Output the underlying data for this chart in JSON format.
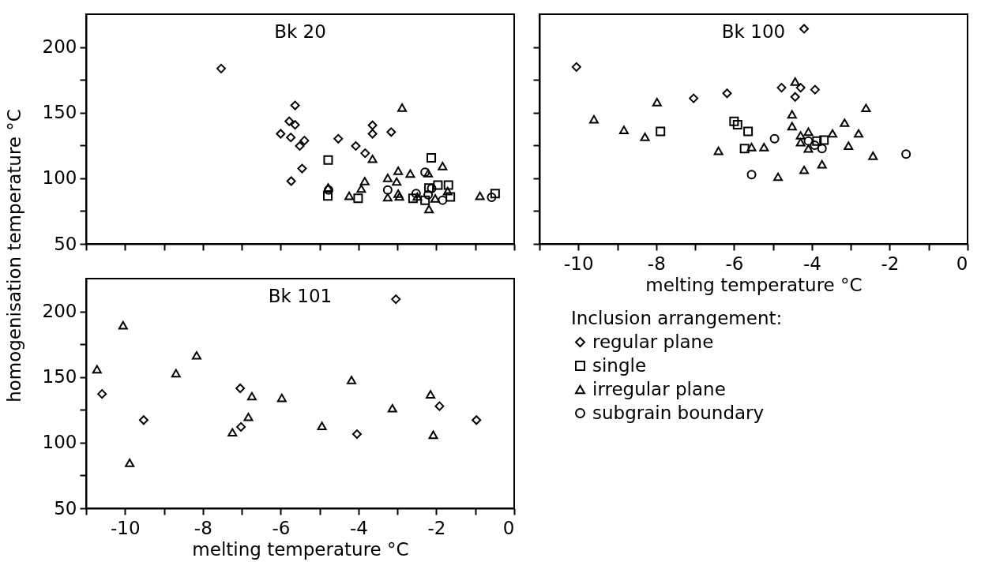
{
  "chart_data": [
    {
      "type": "scatter",
      "title": "Bk 20",
      "ylabel": "homogenisation temperature °C",
      "xlim": [
        -11,
        0
      ],
      "ylim": [
        50,
        225
      ],
      "xticks": [
        {
          "value": -11,
          "label": null
        },
        -10,
        {
          "value": -9,
          "label": null
        },
        -8,
        {
          "value": -7,
          "label": null
        },
        -6,
        {
          "value": -5,
          "label": null
        },
        -4,
        {
          "value": -3,
          "label": null
        },
        -2,
        {
          "value": -1,
          "label": null
        },
        0
      ],
      "yticks": [
        50,
        {
          "value": 75,
          "label": null
        },
        100,
        {
          "value": 125,
          "label": null
        },
        150,
        {
          "value": 175,
          "label": null
        },
        200
      ],
      "tick_labels": "y",
      "grid": false,
      "legend": false,
      "series": [
        {
          "color": "#000000",
          "marker": "diamond",
          "x": [
            -7.53,
            -5.63,
            -5.78,
            -5.63,
            -6.0,
            -5.74,
            -5.39,
            -5.51,
            -5.45,
            -5.73,
            -4.52,
            -4.07,
            -3.83,
            -3.64,
            -3.64,
            -3.16
          ],
          "values": [
            183.6,
            155.5,
            143.4,
            140.7,
            133.9,
            131.1,
            128.7,
            124.6,
            107.4,
            97.8,
            130.1,
            124.6,
            119.1,
            140.4,
            133.9,
            135.2
          ]
        },
        {
          "color": "#000000",
          "marker": "square",
          "x": [
            -4.78,
            -4.79,
            -4.01,
            -2.13,
            -1.96,
            -1.69,
            -1.64,
            -2.29,
            -0.49,
            -2.19,
            -2.6
          ],
          "values": [
            113.9,
            86.6,
            84.7,
            115.6,
            94.8,
            94.8,
            85.8,
            83.3,
            88.3,
            92.6,
            84.7
          ]
        },
        {
          "color": "#000000",
          "marker": "triangle",
          "x": [
            -2.88,
            -3.64,
            -2.67,
            -2.98,
            -3.25,
            -3.02,
            -3.84,
            -3.93,
            -4.24,
            -3.25,
            -2.95,
            -2.98,
            -2.21,
            -1.84,
            -1.71,
            -2.19,
            -0.88,
            -2.49,
            -2.03,
            -4.78
          ],
          "values": [
            153.8,
            114.8,
            103.6,
            105.7,
            100.3,
            97.5,
            97.8,
            92.1,
            86.6,
            85.5,
            86.1,
            88.3,
            103.8,
            109.3,
            90.2,
            76.5,
            86.6,
            86.1,
            84.7,
            92.9
          ]
        },
        {
          "color": "#000000",
          "marker": "circle",
          "x": [
            -4.77,
            -3.25,
            -2.29,
            -2.52,
            -2.12,
            -2.21,
            -1.84,
            -0.58
          ],
          "values": [
            91.0,
            91.0,
            104.6,
            88.3,
            92.3,
            87.4,
            83.3,
            85.5
          ]
        }
      ]
    },
    {
      "type": "scatter",
      "title": "Bk 100",
      "xlabel": "melting temperature °C",
      "legend_title": "Inclusion arrangement:",
      "xlim": [
        -11,
        0
      ],
      "ylim": [
        50,
        225
      ],
      "xticks": [
        {
          "value": -11,
          "label": null
        },
        -10,
        {
          "value": -9,
          "label": null
        },
        -8,
        {
          "value": -7,
          "label": null
        },
        -6,
        {
          "value": -5,
          "label": null
        },
        -4,
        {
          "value": -3,
          "label": null
        },
        -2,
        {
          "value": -1,
          "label": null
        },
        0
      ],
      "yticks": [
        50,
        {
          "value": 75,
          "label": null
        },
        100,
        {
          "value": 125,
          "label": null
        },
        150,
        {
          "value": 175,
          "label": null
        },
        200
      ],
      "tick_labels": "x",
      "grid": false,
      "legend": "bottom",
      "series": [
        {
          "name": "regular plane",
          "color": "#000000",
          "marker": "diamond",
          "x": [
            -4.2,
            -10.05,
            -7.04,
            -6.18,
            -4.78,
            -4.29,
            -3.92,
            -4.43
          ],
          "values": [
            213.9,
            184.8,
            160.9,
            164.7,
            169.0,
            169.0,
            167.5,
            162.0
          ]
        },
        {
          "name": "single",
          "color": "#000000",
          "marker": "square",
          "x": [
            -7.89,
            -6.0,
            -5.91,
            -5.64,
            -5.73,
            -3.69,
            -3.87
          ],
          "values": [
            135.7,
            143.4,
            140.8,
            135.7,
            122.6,
            129.1,
            128.4
          ]
        },
        {
          "name": "irregular plane",
          "color": "#000000",
          "marker": "triangle",
          "x": [
            -9.6,
            -7.98,
            -8.83,
            -8.29,
            -6.4,
            -5.55,
            -5.23,
            -4.87,
            -4.43,
            -4.51,
            -4.51,
            -4.29,
            -4.09,
            -4.29,
            -4.09,
            -3.47,
            -3.16,
            -2.8,
            -3.06,
            -2.61,
            -2.43,
            -4.2,
            -3.74
          ],
          "values": [
            144.9,
            158.0,
            136.8,
            131.6,
            120.9,
            123.7,
            123.7,
            101.1,
            173.7,
            148.7,
            139.7,
            132.7,
            135.5,
            127.4,
            122.6,
            134.2,
            142.3,
            134.2,
            124.8,
            153.6,
            117.1,
            106.4,
            110.7
          ]
        },
        {
          "name": "subgrain boundary",
          "color": "#000000",
          "marker": "circle",
          "x": [
            -4.96,
            -5.55,
            -3.93,
            -3.74,
            -4.09,
            -1.58
          ],
          "values": [
            130.1,
            102.8,
            125.2,
            122.6,
            128.4,
            118.4
          ]
        }
      ]
    },
    {
      "type": "scatter",
      "title": "Bk 101",
      "xlabel": "melting temperature °C",
      "xlim": [
        -11,
        0
      ],
      "ylim": [
        50,
        225
      ],
      "xticks": [
        {
          "value": -11,
          "label": null
        },
        -10,
        {
          "value": -9,
          "label": null
        },
        -8,
        {
          "value": -7,
          "label": null
        },
        -6,
        {
          "value": -5,
          "label": null
        },
        -4,
        {
          "value": -3,
          "label": null
        },
        -2,
        {
          "value": -1,
          "label": null
        },
        0
      ],
      "yticks": [
        50,
        {
          "value": 75,
          "label": null
        },
        100,
        {
          "value": 125,
          "label": null
        },
        150,
        {
          "value": 175,
          "label": null
        },
        200
      ],
      "grid": false,
      "legend": false,
      "series": [
        {
          "color": "#000000",
          "marker": "diamond",
          "x": [
            -10.59,
            -9.52,
            -7.04,
            -7.02,
            -4.04,
            -3.04,
            -1.92,
            -0.97
          ],
          "values": [
            137.1,
            117.2,
            141.4,
            112.0,
            106.5,
            209.3,
            127.8,
            117.2
          ]
        },
        {
          "color": "#000000",
          "marker": "triangle",
          "x": [
            -10.72,
            -10.05,
            -9.88,
            -8.69,
            -8.16,
            -7.24,
            -6.83,
            -6.74,
            -5.97,
            -4.94,
            -4.18,
            -3.13,
            -2.15,
            -2.08
          ],
          "values": [
            155.9,
            189.4,
            84.7,
            152.9,
            166.5,
            107.9,
            119.6,
            135.4,
            134.1,
            112.8,
            147.7,
            126.2,
            136.8,
            106.0
          ]
        }
      ]
    }
  ]
}
